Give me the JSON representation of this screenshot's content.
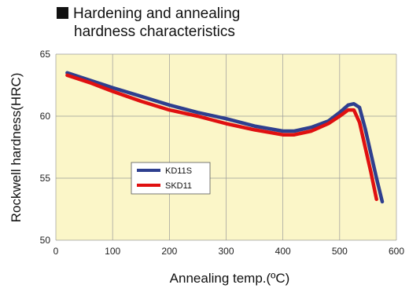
{
  "title_line1": "Hardening and annealing",
  "title_line2": "hardness characteristics",
  "chart_data": {
    "type": "line",
    "xlabel": "Annealing temp.(ºC)",
    "ylabel": "Rockwell hardness(HRC)",
    "xlim": [
      0,
      600
    ],
    "ylim": [
      50,
      65
    ],
    "xticks": [
      "0",
      "100",
      "200",
      "300",
      "400",
      "500",
      "600"
    ],
    "yticks": [
      "50",
      "55",
      "60",
      "65"
    ],
    "grid": true,
    "legend_position": "lower-left",
    "series": [
      {
        "name": "KD11S",
        "color": "#2e3f8f",
        "x": [
          20,
          60,
          100,
          150,
          200,
          250,
          300,
          350,
          400,
          420,
          450,
          480,
          500,
          515,
          525,
          535,
          545,
          555,
          565,
          575
        ],
        "y": [
          63.5,
          62.9,
          62.3,
          61.6,
          60.9,
          60.3,
          59.8,
          59.2,
          58.8,
          58.8,
          59.1,
          59.6,
          60.3,
          60.9,
          61.0,
          60.7,
          59.0,
          57.0,
          55.0,
          53.1
        ]
      },
      {
        "name": "SKD11",
        "color": "#e01010",
        "x": [
          20,
          60,
          100,
          150,
          200,
          250,
          300,
          350,
          400,
          420,
          450,
          480,
          500,
          515,
          525,
          535,
          545,
          555,
          565
        ],
        "y": [
          63.3,
          62.7,
          62.0,
          61.2,
          60.5,
          60.0,
          59.4,
          58.9,
          58.5,
          58.5,
          58.8,
          59.4,
          60.0,
          60.5,
          60.5,
          59.5,
          57.5,
          55.5,
          53.3
        ]
      }
    ]
  }
}
